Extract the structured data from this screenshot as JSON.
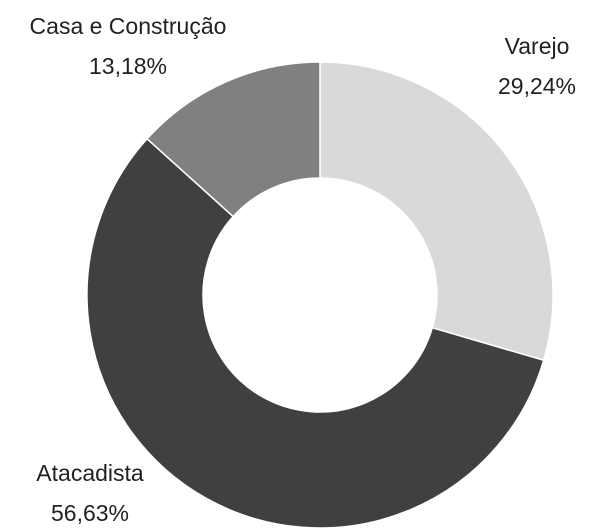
{
  "chart_data": {
    "type": "pie",
    "donut": true,
    "categories": [
      "Varejo",
      "Atacadista",
      "Casa e Construção"
    ],
    "values": [
      29.24,
      56.63,
      13.18
    ],
    "value_labels": [
      "29,24%",
      "56,63%",
      "13,18%"
    ],
    "colors": [
      "#d9d9d9",
      "#404040",
      "#808080"
    ]
  }
}
